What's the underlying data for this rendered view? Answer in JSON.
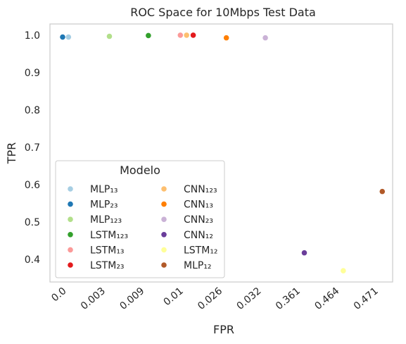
{
  "chart_data": {
    "type": "scatter",
    "title": "ROC Space for 10Mbps Test Data",
    "xlabel": "FPR",
    "ylabel": "TPR",
    "x_categories": [
      "0.0",
      "0.003",
      "0.009",
      "0.01",
      "0.026",
      "0.032",
      "0.361",
      "0.464",
      "0.471"
    ],
    "y_ticks": [
      "0.4",
      "0.5",
      "0.6",
      "0.7",
      "0.8",
      "0.9",
      "1.0"
    ],
    "ylim": [
      0.34,
      1.03
    ],
    "grid": false,
    "legend_title": "Modelo",
    "legend_placement": "lower-left",
    "series": [
      {
        "name": "MLP₁₃",
        "color": "#a6cee3",
        "x": 0.15,
        "y": 0.995
      },
      {
        "name": "MLP₂₃",
        "color": "#1f78b4",
        "x": 0.0,
        "y": 0.995
      },
      {
        "name": "MLP₁₂₃",
        "color": "#b2df8a",
        "x": 1.2,
        "y": 0.997
      },
      {
        "name": "LSTM₁₂₃",
        "color": "#33a02c",
        "x": 2.2,
        "y": 0.999
      },
      {
        "name": "LSTM₁₃",
        "color": "#fb9a99",
        "x": 3.02,
        "y": 1.0
      },
      {
        "name": "LSTM₂₃",
        "color": "#e31a1c",
        "x": 3.35,
        "y": 1.0
      },
      {
        "name": "CNN₁₂₃",
        "color": "#fdbf6f",
        "x": 3.18,
        "y": 1.0
      },
      {
        "name": "CNN₁₃",
        "color": "#ff7f00",
        "x": 4.2,
        "y": 0.993
      },
      {
        "name": "CNN₂₃",
        "color": "#cab2d6",
        "x": 5.2,
        "y": 0.993
      },
      {
        "name": "CNN₁₂",
        "color": "#6a3d9a",
        "x": 6.2,
        "y": 0.418
      },
      {
        "name": "LSTM₁₂",
        "color": "#ffff99",
        "x": 7.2,
        "y": 0.37
      },
      {
        "name": "MLP₁₂",
        "color": "#b15928",
        "x": 8.2,
        "y": 0.582
      }
    ]
  }
}
